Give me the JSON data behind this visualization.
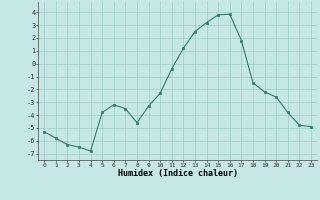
{
  "x": [
    0,
    1,
    2,
    3,
    4,
    5,
    6,
    7,
    8,
    9,
    10,
    11,
    12,
    13,
    14,
    15,
    16,
    17,
    18,
    19,
    20,
    21,
    22,
    23
  ],
  "y": [
    -5.3,
    -5.8,
    -6.3,
    -6.5,
    -6.8,
    -3.8,
    -3.2,
    -3.5,
    -4.6,
    -3.3,
    -2.3,
    -0.4,
    1.2,
    2.5,
    3.2,
    3.8,
    3.85,
    1.8,
    -1.5,
    -2.2,
    -2.6,
    -3.8,
    -4.8,
    -4.9
  ],
  "xlabel": "Humidex (Indice chaleur)",
  "ylim": [
    -7.5,
    4.8
  ],
  "xlim": [
    -0.5,
    23.5
  ],
  "yticks": [
    -7,
    -6,
    -5,
    -4,
    -3,
    -2,
    -1,
    0,
    1,
    2,
    3,
    4
  ],
  "xticks": [
    0,
    1,
    2,
    3,
    4,
    5,
    6,
    7,
    8,
    9,
    10,
    11,
    12,
    13,
    14,
    15,
    16,
    17,
    18,
    19,
    20,
    21,
    22,
    23
  ],
  "line_color": "#2e7d6e",
  "marker_color": "#2e7d6e",
  "bg_color": "#c5e8e5",
  "grid_color": "#9eccc8",
  "title": ""
}
